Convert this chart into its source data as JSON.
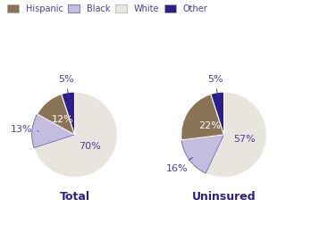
{
  "total_sizes": [
    70,
    13,
    12,
    5
  ],
  "total_order": [
    "White",
    "Black",
    "Hispanic",
    "Other"
  ],
  "uninsured_sizes": [
    57,
    16,
    22,
    5
  ],
  "uninsured_order": [
    "White",
    "Black",
    "Hispanic",
    "Other"
  ],
  "hispanic_color": "#8b7355",
  "black_color": "#c5bde0",
  "black_hatch_color": "#5b4fa0",
  "white_color": "#e8e4de",
  "other_color": "#2d1f8a",
  "label_color": "#4a3fa0",
  "title_color": "#2d1f8a",
  "background_color": "#ffffff",
  "legend_labels": [
    "Hispanic",
    "Black",
    "White",
    "Other"
  ],
  "title_total": "Total",
  "title_uninsured": "Uninsured",
  "total_label_texts": [
    "70%",
    "13%",
    "12%",
    "5%"
  ],
  "uninsured_label_texts": [
    "57%",
    "16%",
    "22%",
    "5%"
  ],
  "figsize": [
    3.48,
    2.7
  ],
  "dpi": 100
}
